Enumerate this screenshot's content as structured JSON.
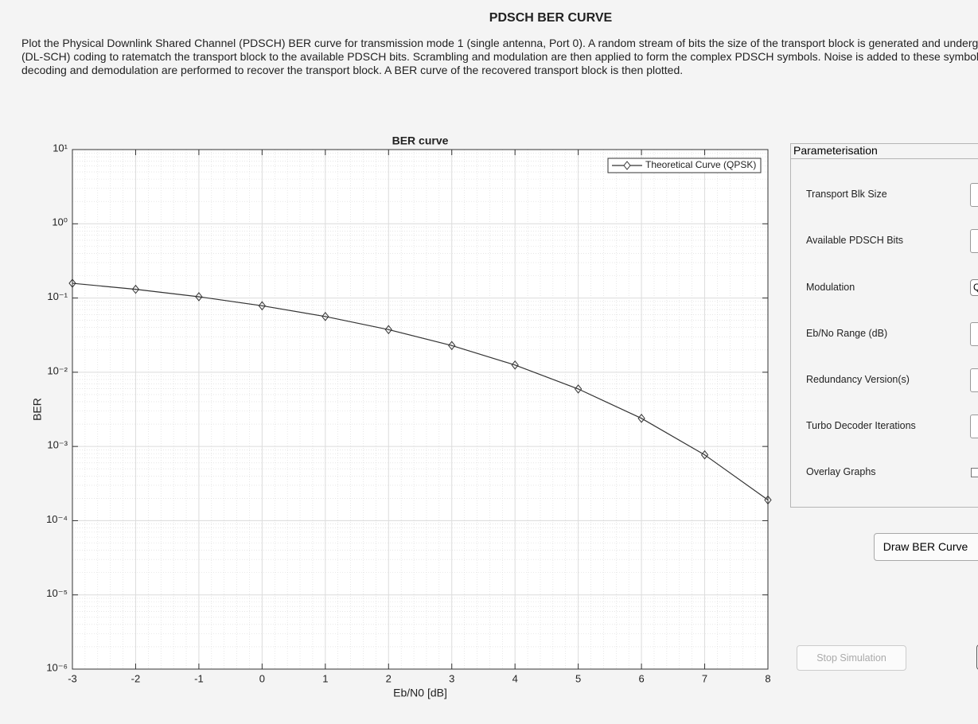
{
  "header": {
    "title": "PDSCH BER CURVE"
  },
  "description": {
    "lines": [
      "Plot the Physical Downlink Shared Channel (PDSCH) BER curve for transmission mode 1 (single antenna, Port 0). A random stream of bits the size of the transport block is generated and undergoes Down",
      "(DL-SCH) coding to ratematch the transport block to the available PDSCH bits. Scrambling and modulation are then applied to form the complex PDSCH symbols. Noise is added to these symbols and phy",
      "decoding and demodulation are performed to recover the transport block. A BER curve of the recovered transport block is then plotted."
    ]
  },
  "chart_data": {
    "type": "line",
    "title": "BER curve",
    "x_label": "Eb/N0 [dB]",
    "y_label": "BER",
    "x": [
      -3,
      -2,
      -1,
      0,
      1,
      2,
      3,
      4,
      5,
      6,
      7,
      8
    ],
    "series": [
      {
        "name": "Theoretical Curve (QPSK)",
        "color": "#333333",
        "marker": "diamond",
        "values": [
          0.158,
          0.131,
          0.104,
          0.0786,
          0.0563,
          0.0375,
          0.0229,
          0.0125,
          0.00595,
          0.00239,
          0.00077,
          0.00019
        ]
      }
    ],
    "xlim": [
      -3,
      8
    ],
    "xticks": [
      -3,
      -2,
      -1,
      0,
      1,
      2,
      3,
      4,
      5,
      6,
      7,
      8
    ],
    "ylim": [
      1e-06,
      10
    ],
    "y_scale": "log",
    "yticks": [
      {
        "value": 1e-06,
        "label": "10⁻⁶"
      },
      {
        "value": 1e-05,
        "label": "10⁻⁵"
      },
      {
        "value": 0.0001,
        "label": "10⁻⁴"
      },
      {
        "value": 0.001,
        "label": "10⁻³"
      },
      {
        "value": 0.01,
        "label": "10⁻²"
      },
      {
        "value": 0.1,
        "label": "10⁻¹"
      },
      {
        "value": 1,
        "label": "10⁰"
      },
      {
        "value": 10,
        "label": "10¹"
      }
    ],
    "grid": true,
    "minor_grid": true,
    "legend": "northeast"
  },
  "panel": {
    "title": "Parameterisation",
    "fields": [
      {
        "label": "Transport Blk Size"
      },
      {
        "label": "Available PDSCH Bits"
      },
      {
        "label": "Modulation",
        "value": "Q"
      },
      {
        "label": "Eb/No Range (dB)"
      },
      {
        "label": "Redundancy Version(s)"
      },
      {
        "label": "Turbo Decoder Iterations"
      },
      {
        "label": "Overlay Graphs"
      }
    ]
  },
  "buttons": {
    "draw": "Draw BER Curve",
    "stop": "Stop Simulation"
  }
}
